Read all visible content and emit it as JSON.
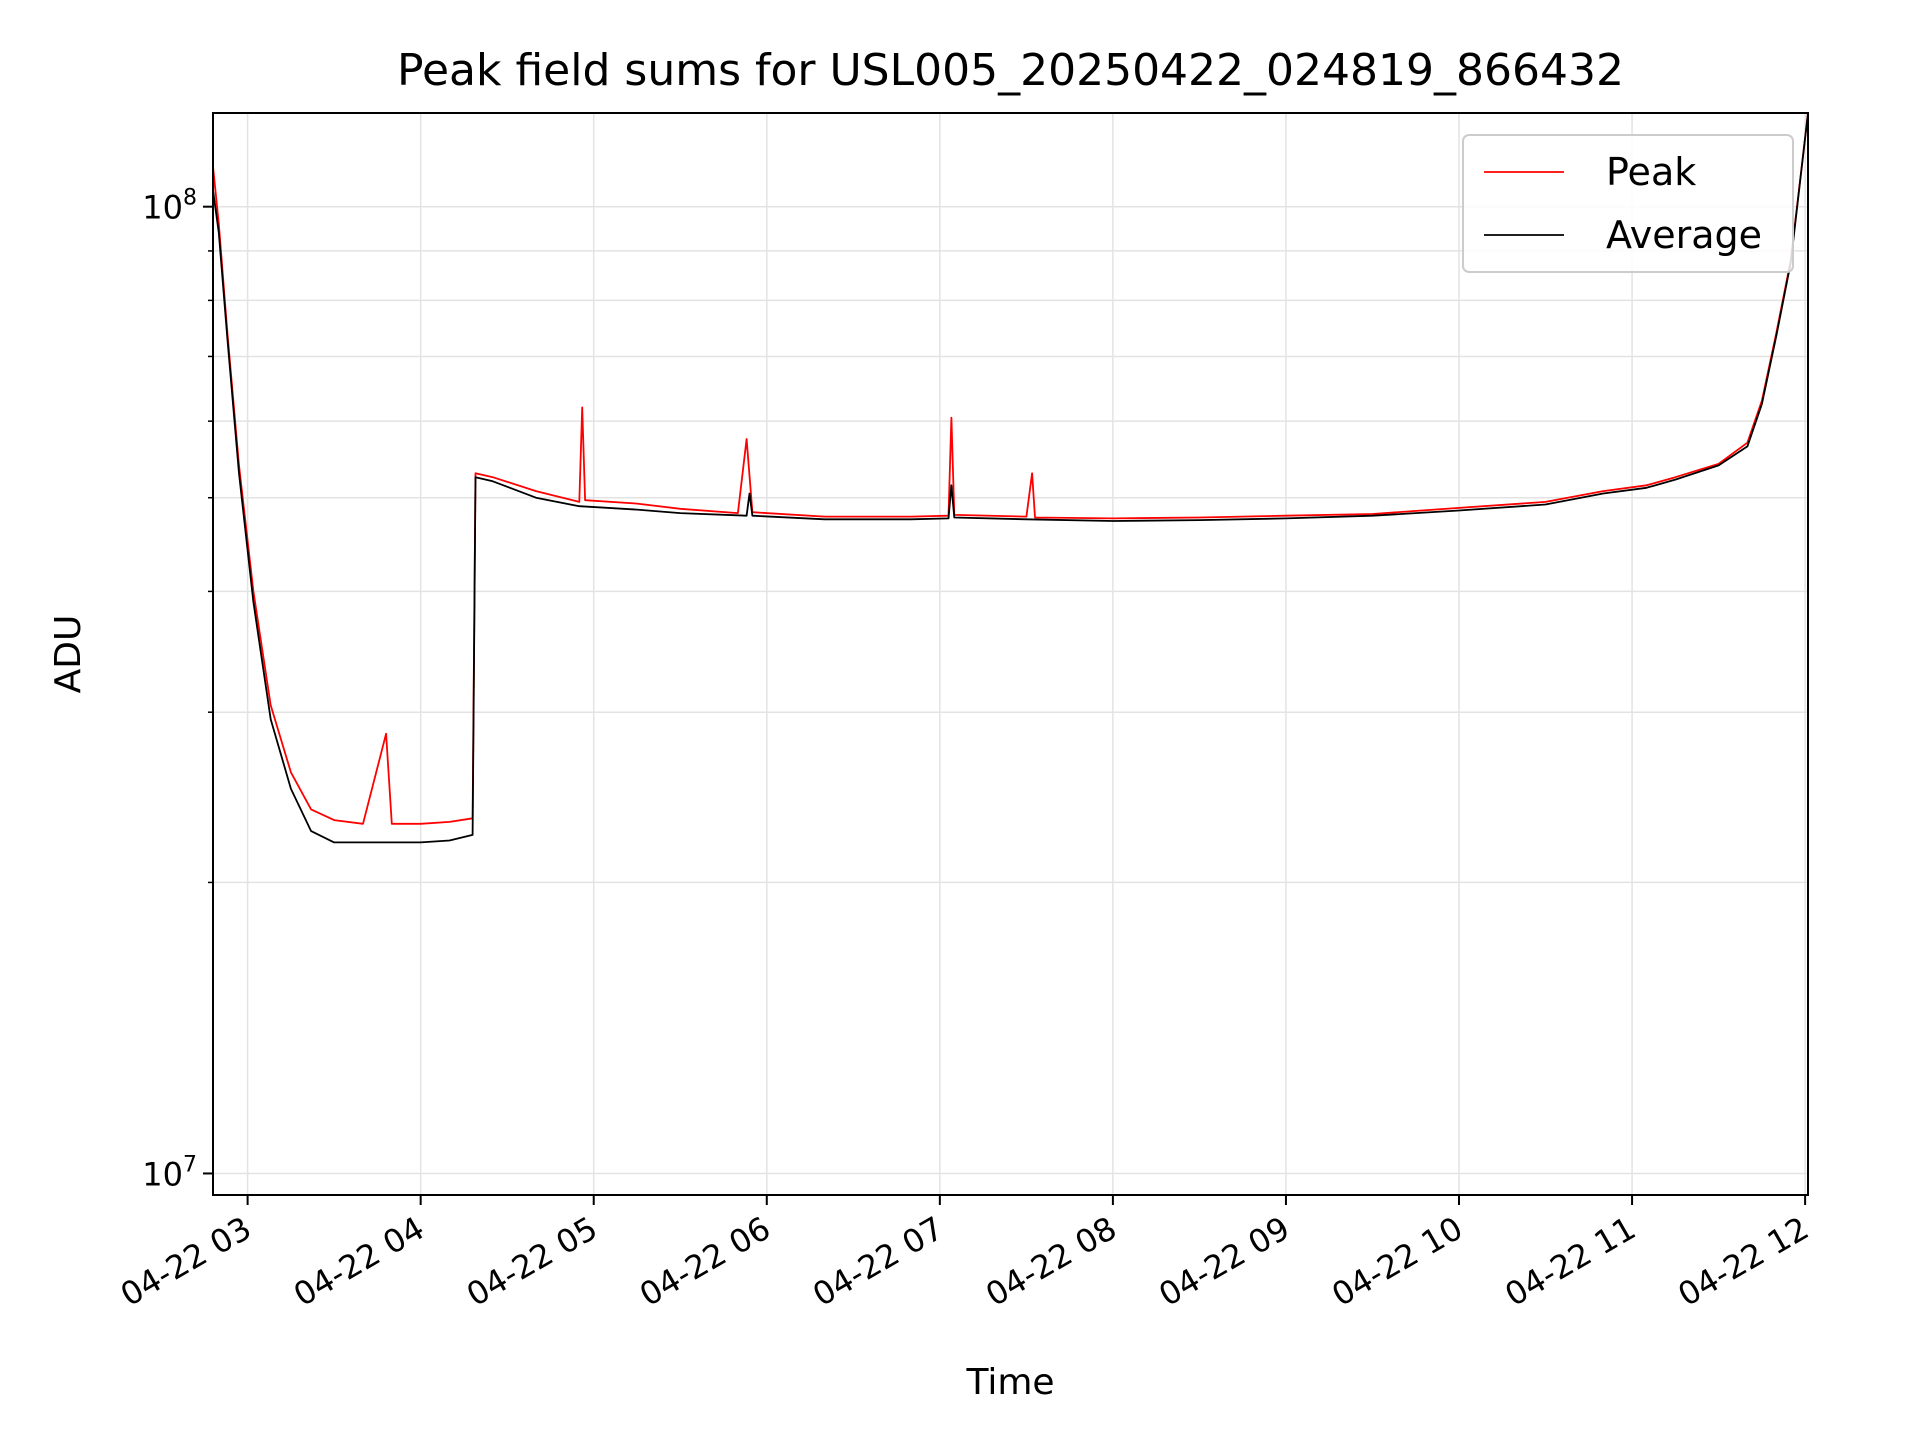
{
  "chart_data": {
    "type": "line",
    "title": "Peak field sums for USL005_20250422_024819_866432",
    "xlabel": "Time",
    "ylabel": "ADU",
    "y_scale": "log",
    "ylim": [
      9500000,
      125000000
    ],
    "xlim": [
      "2025-04-22 02:48",
      "2025-04-22 12:01"
    ],
    "x_ticks": [
      "04-22 03",
      "04-22 04",
      "04-22 05",
      "04-22 06",
      "04-22 07",
      "04-22 08",
      "04-22 09",
      "04-22 10",
      "04-22 11",
      "04-22 12"
    ],
    "y_ticks": [
      {
        "value": 100000000,
        "base": "10",
        "exp": "8"
      },
      {
        "value": 10000000,
        "base": "10",
        "exp": "7"
      }
    ],
    "grid": true,
    "legend_position": "top-right",
    "series": [
      {
        "name": "Peak",
        "color": "#ff0000",
        "points": [
          [
            "2025-04-22 02:48",
            110000000
          ],
          [
            "2025-04-22 02:50",
            96000000
          ],
          [
            "2025-04-22 02:53",
            74000000
          ],
          [
            "2025-04-22 02:57",
            54000000
          ],
          [
            "2025-04-22 03:02",
            40000000
          ],
          [
            "2025-04-22 03:08",
            30500000
          ],
          [
            "2025-04-22 03:15",
            26000000
          ],
          [
            "2025-04-22 03:22",
            23800000
          ],
          [
            "2025-04-22 03:30",
            23200000
          ],
          [
            "2025-04-22 03:40",
            23000000
          ],
          [
            "2025-04-22 03:48",
            28500000
          ],
          [
            "2025-04-22 03:50",
            23000000
          ],
          [
            "2025-04-22 04:00",
            23000000
          ],
          [
            "2025-04-22 04:10",
            23100000
          ],
          [
            "2025-04-22 04:18",
            23300000
          ],
          [
            "2025-04-22 04:19",
            53000000
          ],
          [
            "2025-04-22 04:25",
            52500000
          ],
          [
            "2025-04-22 04:40",
            50800000
          ],
          [
            "2025-04-22 04:55",
            49500000
          ],
          [
            "2025-04-22 04:56",
            62000000
          ],
          [
            "2025-04-22 04:57",
            49700000
          ],
          [
            "2025-04-22 05:15",
            49300000
          ],
          [
            "2025-04-22 05:30",
            48700000
          ],
          [
            "2025-04-22 05:50",
            48200000
          ],
          [
            "2025-04-22 05:53",
            57500000
          ],
          [
            "2025-04-22 05:55",
            48300000
          ],
          [
            "2025-04-22 06:20",
            47800000
          ],
          [
            "2025-04-22 06:50",
            47800000
          ],
          [
            "2025-04-22 07:03",
            47900000
          ],
          [
            "2025-04-22 07:04",
            60500000
          ],
          [
            "2025-04-22 07:05",
            48000000
          ],
          [
            "2025-04-22 07:30",
            47800000
          ],
          [
            "2025-04-22 07:32",
            53000000
          ],
          [
            "2025-04-22 07:33",
            47700000
          ],
          [
            "2025-04-22 08:00",
            47600000
          ],
          [
            "2025-04-22 08:30",
            47700000
          ],
          [
            "2025-04-22 09:00",
            47900000
          ],
          [
            "2025-04-22 09:30",
            48100000
          ],
          [
            "2025-04-22 10:00",
            48800000
          ],
          [
            "2025-04-22 10:30",
            49500000
          ],
          [
            "2025-04-22 10:50",
            50800000
          ],
          [
            "2025-04-22 11:05",
            51500000
          ],
          [
            "2025-04-22 11:15",
            52500000
          ],
          [
            "2025-04-22 11:30",
            54200000
          ],
          [
            "2025-04-22 11:40",
            57000000
          ],
          [
            "2025-04-22 11:45",
            63000000
          ],
          [
            "2025-04-22 11:50",
            74000000
          ],
          [
            "2025-04-22 11:55",
            88000000
          ],
          [
            "2025-04-22 12:01",
            125000000
          ]
        ]
      },
      {
        "name": "Average",
        "color": "#000000",
        "points": [
          [
            "2025-04-22 02:48",
            104000000
          ],
          [
            "2025-04-22 02:50",
            94000000
          ],
          [
            "2025-04-22 02:53",
            73000000
          ],
          [
            "2025-04-22 02:57",
            53000000
          ],
          [
            "2025-04-22 03:02",
            39000000
          ],
          [
            "2025-04-22 03:08",
            29500000
          ],
          [
            "2025-04-22 03:15",
            25000000
          ],
          [
            "2025-04-22 03:22",
            22600000
          ],
          [
            "2025-04-22 03:30",
            22000000
          ],
          [
            "2025-04-22 03:40",
            22000000
          ],
          [
            "2025-04-22 03:50",
            22000000
          ],
          [
            "2025-04-22 04:00",
            22000000
          ],
          [
            "2025-04-22 04:10",
            22100000
          ],
          [
            "2025-04-22 04:18",
            22400000
          ],
          [
            "2025-04-22 04:19",
            52500000
          ],
          [
            "2025-04-22 04:25",
            52000000
          ],
          [
            "2025-04-22 04:40",
            50000000
          ],
          [
            "2025-04-22 04:55",
            49000000
          ],
          [
            "2025-04-22 05:15",
            48600000
          ],
          [
            "2025-04-22 05:30",
            48200000
          ],
          [
            "2025-04-22 05:53",
            47900000
          ],
          [
            "2025-04-22 05:54",
            50500000
          ],
          [
            "2025-04-22 05:55",
            47900000
          ],
          [
            "2025-04-22 06:20",
            47500000
          ],
          [
            "2025-04-22 06:50",
            47500000
          ],
          [
            "2025-04-22 07:03",
            47600000
          ],
          [
            "2025-04-22 07:04",
            51500000
          ],
          [
            "2025-04-22 07:05",
            47700000
          ],
          [
            "2025-04-22 07:30",
            47500000
          ],
          [
            "2025-04-22 08:00",
            47300000
          ],
          [
            "2025-04-22 08:30",
            47400000
          ],
          [
            "2025-04-22 09:00",
            47600000
          ],
          [
            "2025-04-22 09:30",
            47900000
          ],
          [
            "2025-04-22 10:00",
            48500000
          ],
          [
            "2025-04-22 10:30",
            49200000
          ],
          [
            "2025-04-22 10:50",
            50500000
          ],
          [
            "2025-04-22 11:05",
            51200000
          ],
          [
            "2025-04-22 11:15",
            52200000
          ],
          [
            "2025-04-22 11:30",
            54000000
          ],
          [
            "2025-04-22 11:40",
            56500000
          ],
          [
            "2025-04-22 11:45",
            62500000
          ],
          [
            "2025-04-22 11:50",
            73500000
          ],
          [
            "2025-04-22 11:55",
            87500000
          ],
          [
            "2025-04-22 12:01",
            125000000
          ]
        ]
      }
    ]
  }
}
